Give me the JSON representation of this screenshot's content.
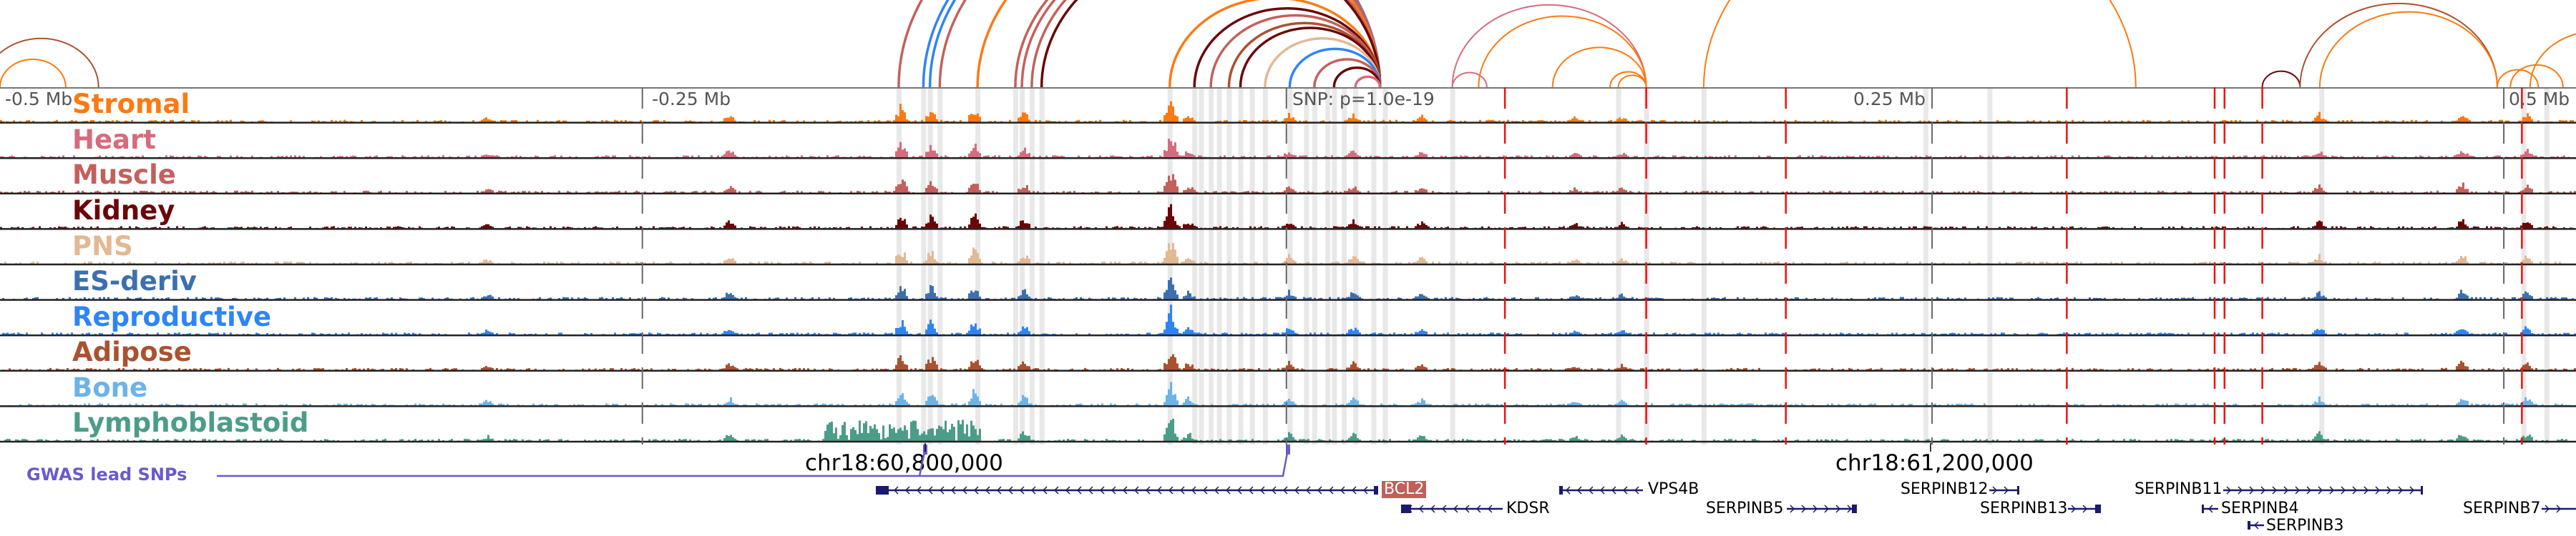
{
  "axis": {
    "labels": [
      "-0.5 Mb",
      "-0.25 Mb",
      "SNP: p=1.0e-19",
      "0.25 Mb",
      "0.5 Mb"
    ],
    "chr_ticks": [
      "chr18:60,800,000",
      "chr18:61,200,000"
    ]
  },
  "tracks": [
    {
      "name": "Stromal",
      "color": "#fb7a12"
    },
    {
      "name": "Heart",
      "color": "#d66b7d"
    },
    {
      "name": "Muscle",
      "color": "#c4605c"
    },
    {
      "name": "Kidney",
      "color": "#6b0608"
    },
    {
      "name": "PNS",
      "color": "#e2b995"
    },
    {
      "name": "ES-deriv",
      "color": "#3d6fae"
    },
    {
      "name": "Reproductive",
      "color": "#2f84f5"
    },
    {
      "name": "Adipose",
      "color": "#aa5230"
    },
    {
      "name": "Bone",
      "color": "#6db3e8"
    },
    {
      "name": "Lymphoblastoid",
      "color": "#4c9c8a"
    }
  ],
  "gwas": {
    "label": "GWAS lead SNPs",
    "color": "#6a5acd"
  },
  "genes": [
    {
      "name": "BCL2",
      "strand": "-",
      "highlight": true
    },
    {
      "name": "KDSR",
      "strand": "-"
    },
    {
      "name": "VPS4B",
      "strand": "-"
    },
    {
      "name": "SERPINB5",
      "strand": "+"
    },
    {
      "name": "SERPINB12",
      "strand": "+"
    },
    {
      "name": "SERPINB13",
      "strand": "+"
    },
    {
      "name": "SERPINB11",
      "strand": "+"
    },
    {
      "name": "SERPINB4",
      "strand": "-"
    },
    {
      "name": "SERPINB3",
      "strand": "-"
    },
    {
      "name": "SERPINB7",
      "strand": "+"
    }
  ],
  "colors": {
    "gene": "#1a1a6e",
    "highlight_line": "#e8e8e8",
    "red_marker": "#ee1111"
  }
}
